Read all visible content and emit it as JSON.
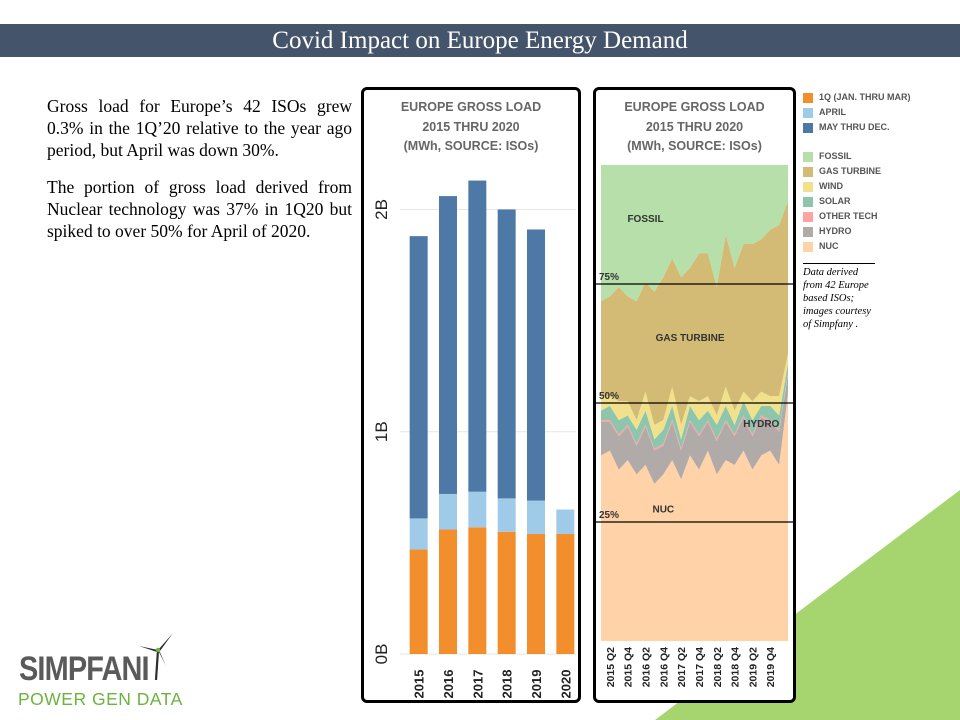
{
  "header": {
    "title": "Covid Impact on Europe Energy Demand"
  },
  "body_text": {
    "paragraph1": "Gross load for Europe’s 42 ISOs grew 0.3% in the 1Q’20 relative to the year ago period, but April was down 30%.",
    "paragraph2": "The portion of gross load derived from Nuclear technology was 37% in 1Q20 but spiked to over 50% for April of 2020."
  },
  "note": "Data derived from 42 Europe based ISOs; images courtesy of Simpfany .",
  "logo": {
    "word": "SIMPFANI",
    "tagline": "POWER GEN DATA",
    "icon": "wind-turbine-icon"
  },
  "colors": {
    "header_bg": "#44546a",
    "accent_green": "#a6d46f"
  },
  "chart_data": [
    {
      "type": "bar",
      "stacked": true,
      "title_lines": [
        "EUROPE GROSS LOAD",
        "2015 THRU 2020",
        "(MWh, SOURCE: ISOs)"
      ],
      "categories": [
        "2015",
        "2016",
        "2017",
        "2018",
        "2019",
        "2020"
      ],
      "series": [
        {
          "name": "1Q (JAN. THRU MAR)",
          "color": "#f28e2b",
          "values": [
            0.47,
            0.56,
            0.57,
            0.55,
            0.54,
            0.54
          ]
        },
        {
          "name": "APRIL",
          "color": "#a0cbe8",
          "values": [
            0.14,
            0.16,
            0.16,
            0.15,
            0.15,
            0.11
          ]
        },
        {
          "name": "MAY THRU DEC.",
          "color": "#4e79a7",
          "values": [
            1.27,
            1.34,
            1.4,
            1.3,
            1.22,
            0
          ]
        }
      ],
      "ylim": [
        0,
        2.2
      ],
      "yticks": [
        0,
        1,
        2
      ],
      "ytick_labels": [
        "0B",
        "1B",
        "2B"
      ]
    },
    {
      "type": "area",
      "stacked": true,
      "percent": true,
      "title_lines": [
        "EUROPE GROSS LOAD",
        "2015 THRU 2020",
        "(MWh, SOURCE: ISOs)"
      ],
      "x_tick_labels": [
        "2015 Q2",
        "2015 Q4",
        "2016 Q2",
        "2016 Q4",
        "2017 Q2",
        "2017 Q4",
        "2018 Q2",
        "2018 Q4",
        "2019 Q2",
        "2019 Q4"
      ],
      "n_points": 22,
      "series": [
        {
          "name": "NUC",
          "color": "#ffd2a8",
          "values": [
            39,
            40,
            36,
            38,
            35,
            37,
            33,
            35,
            38,
            34,
            39,
            36,
            40,
            35,
            38,
            37,
            40,
            36,
            39,
            40,
            37,
            52
          ]
        },
        {
          "name": "HYDRO",
          "color": "#b0aaa9",
          "values": [
            7,
            6,
            7,
            7,
            6,
            8,
            7,
            6,
            8,
            6,
            7,
            7,
            6,
            7,
            8,
            6,
            7,
            7,
            8,
            6,
            7,
            4
          ]
        },
        {
          "name": "OTHER TECH",
          "color": "#ffa2a2",
          "values": [
            0.4,
            0.4,
            0.4,
            0.4,
            0.4,
            0.4,
            0.4,
            0.4,
            0.4,
            0.4,
            0.4,
            0.4,
            0.4,
            0.4,
            0.4,
            0.4,
            0.4,
            0.4,
            0.4,
            0.4,
            0.4,
            0.4
          ]
        },
        {
          "name": "SOLAR",
          "color": "#8ec6ad",
          "values": [
            2,
            3,
            3,
            2,
            3,
            3,
            2,
            3,
            3,
            2,
            3,
            3,
            2,
            3,
            3,
            2,
            3,
            3,
            2,
            3,
            3,
            2
          ]
        },
        {
          "name": "WIND",
          "color": "#f1e18d",
          "values": [
            3,
            2,
            4,
            3,
            2,
            4,
            3,
            2,
            4,
            3,
            2,
            4,
            3,
            2,
            4,
            3,
            2,
            4,
            3,
            2,
            4,
            2
          ]
        },
        {
          "name": "GAS TURBINE",
          "color": "#d4bb75",
          "values": [
            20,
            21,
            24,
            22,
            25,
            23,
            28,
            30,
            27,
            31,
            27,
            31,
            30,
            27,
            32,
            30,
            31,
            33,
            32,
            35,
            36,
            32
          ]
        },
        {
          "name": "FOSSIL",
          "color": "#b6dfa9",
          "values": [
            28.6,
            27.6,
            25.6,
            27.6,
            28.6,
            24.6,
            26.6,
            23.6,
            19.6,
            23.6,
            21.6,
            18.6,
            18.6,
            25.6,
            14.6,
            21.6,
            16.6,
            16.6,
            15.6,
            13.6,
            12.6,
            7.6
          ]
        }
      ],
      "reference_lines": [
        {
          "value": 25,
          "label": "25%"
        },
        {
          "value": 50,
          "label": "50%"
        },
        {
          "value": 75,
          "label": "75%"
        }
      ],
      "region_labels": [
        {
          "text": "FOSSIL",
          "at_index": 5,
          "at_value": 88
        },
        {
          "text": "GAS TURBINE",
          "at_index": 10,
          "at_value": 63
        },
        {
          "text": "HYDRO",
          "at_index": 18,
          "at_value": 45
        },
        {
          "text": "NUC",
          "at_index": 7,
          "at_value": 27
        }
      ],
      "legend": [
        {
          "name": "1Q (JAN. THRU MAR)",
          "color": "#f28e2b"
        },
        {
          "name": "APRIL",
          "color": "#a0cbe8"
        },
        {
          "name": "MAY THRU DEC.",
          "color": "#4e79a7"
        },
        {
          "name": "FOSSIL",
          "color": "#b6dfa9"
        },
        {
          "name": "GAS TURBINE",
          "color": "#d4bb75"
        },
        {
          "name": "WIND",
          "color": "#f1e18d"
        },
        {
          "name": "SOLAR",
          "color": "#8ec6ad"
        },
        {
          "name": "OTHER TECH",
          "color": "#ffa2a2"
        },
        {
          "name": "HYDRO",
          "color": "#b0aaa9"
        },
        {
          "name": "NUC",
          "color": "#ffd2a8"
        }
      ]
    }
  ]
}
